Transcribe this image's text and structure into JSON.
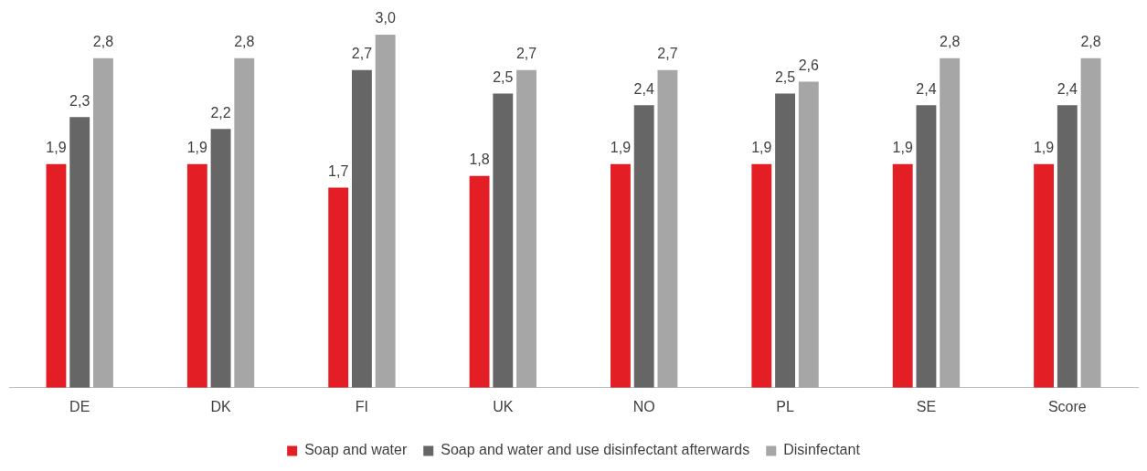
{
  "chart_data": {
    "type": "bar",
    "categories": [
      "DE",
      "DK",
      "FI",
      "UK",
      "NO",
      "PL",
      "SE",
      "Score"
    ],
    "series": [
      {
        "name": "Soap and water",
        "color": "#e31e24",
        "values": [
          1.9,
          1.9,
          1.7,
          1.8,
          1.9,
          1.9,
          1.9,
          1.9
        ],
        "value_labels": [
          "1,9",
          "1,9",
          "1,7",
          "1,8",
          "1,9",
          "1,9",
          "1,9",
          "1,9"
        ]
      },
      {
        "name": "Soap and water and use disinfectant afterwards",
        "color": "#666666",
        "values": [
          2.3,
          2.2,
          2.7,
          2.5,
          2.4,
          2.5,
          2.4,
          2.4
        ],
        "value_labels": [
          "2,3",
          "2,2",
          "2,7",
          "2,5",
          "2,4",
          "2,5",
          "2,4",
          "2,4"
        ]
      },
      {
        "name": "Disinfectant",
        "color": "#a6a6a6",
        "values": [
          2.8,
          2.8,
          3.0,
          2.7,
          2.7,
          2.6,
          2.8,
          2.8
        ],
        "value_labels": [
          "2,8",
          "2,8",
          "3,0",
          "2,7",
          "2,7",
          "2,6",
          "2,8",
          "2,8"
        ]
      }
    ],
    "tick_labels": "x",
    "grid": false,
    "legend": "bottom"
  }
}
